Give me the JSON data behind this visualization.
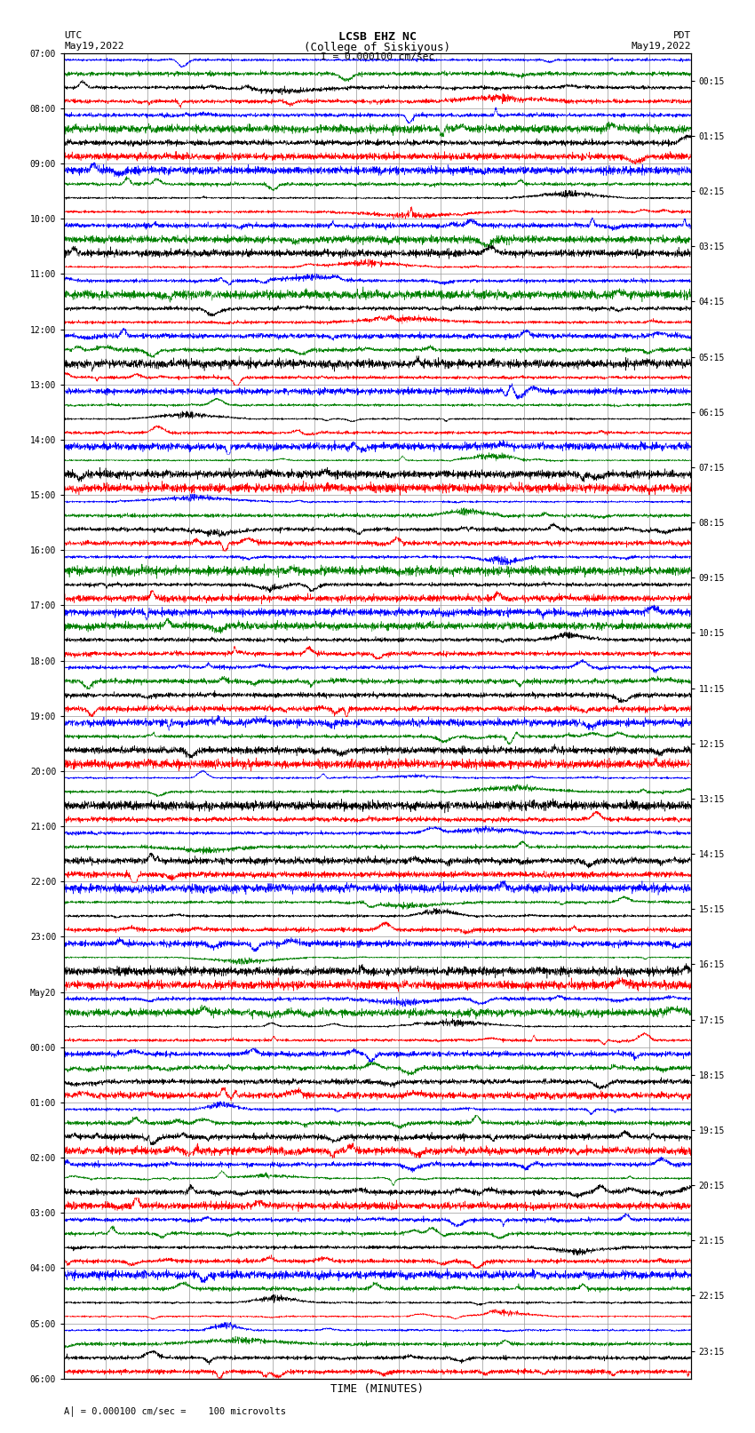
{
  "title_line1": "LCSB EHZ NC",
  "title_line2": "(College of Siskiyous)",
  "scale_text": "I = 0.000100 cm/sec",
  "utc_label": "UTC",
  "pdt_label": "PDT",
  "date_left": "May19,2022",
  "date_right": "May19,2022",
  "xlabel": "TIME (MINUTES)",
  "footer_text": "A│ = 0.000100 cm/sec =    100 microvolts",
  "left_times": [
    "07:00",
    "08:00",
    "09:00",
    "10:00",
    "11:00",
    "12:00",
    "13:00",
    "14:00",
    "15:00",
    "16:00",
    "17:00",
    "18:00",
    "19:00",
    "20:00",
    "21:00",
    "22:00",
    "23:00",
    "May20",
    "00:00",
    "01:00",
    "02:00",
    "03:00",
    "04:00",
    "05:00",
    "06:00"
  ],
  "right_times": [
    "00:15",
    "01:15",
    "02:15",
    "03:15",
    "04:15",
    "05:15",
    "06:15",
    "07:15",
    "08:15",
    "09:15",
    "10:15",
    "11:15",
    "12:15",
    "13:15",
    "14:15",
    "15:15",
    "16:15",
    "17:15",
    "18:15",
    "19:15",
    "20:15",
    "21:15",
    "22:15",
    "23:15"
  ],
  "trace_colors_cycle": [
    "blue",
    "green",
    "black",
    "red"
  ],
  "num_rows": 96,
  "num_cols": 3000,
  "xlim": [
    0,
    15
  ],
  "xticks": [
    0,
    1,
    2,
    3,
    4,
    5,
    6,
    7,
    8,
    9,
    10,
    11,
    12,
    13,
    14,
    15
  ],
  "bg_color": "white",
  "grid_color": "#999999",
  "font_family": "monospace",
  "row_amplitude": 0.38,
  "linewidth": 0.35
}
